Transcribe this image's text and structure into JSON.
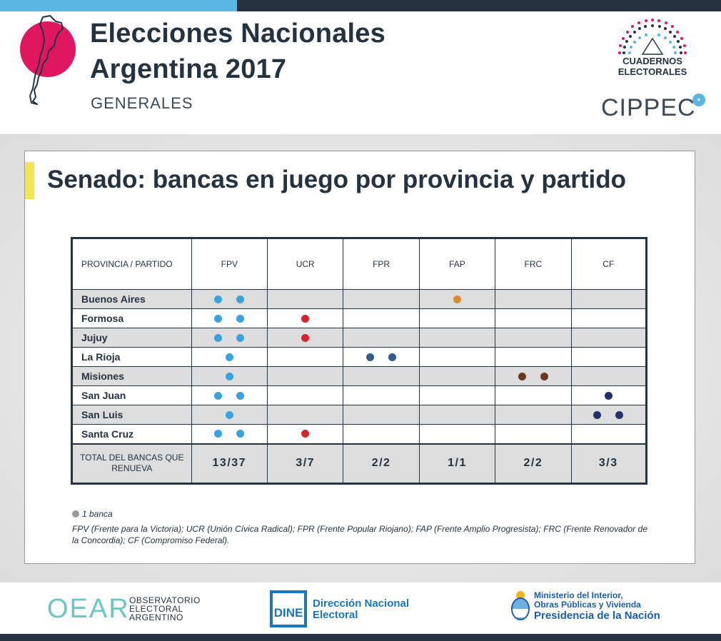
{
  "header": {
    "title_line1": "Elecciones Nacionales",
    "title_line2": "Argentina 2017",
    "subtitle": "GENERALES",
    "logo_cuadernos": "CUADERNOS ELECTORALES",
    "logo_cippec": "CIPPEC"
  },
  "card": {
    "title": "Senado: bancas en juego por provincia y partido"
  },
  "table": {
    "header_province": "PROVINCIA / PARTIDO",
    "parties": [
      "FPV",
      "UCR",
      "FPR",
      "FAP",
      "FRC",
      "CF"
    ],
    "party_colors": {
      "FPV": "#3aa3de",
      "UCR": "#d6242a",
      "FPR": "#345b8c",
      "FAP": "#e08a2c",
      "FRC": "#6b3a22",
      "CF": "#252f6a"
    },
    "rows": [
      {
        "province": "Buenos Aires",
        "seats": [
          2,
          0,
          0,
          1,
          0,
          0
        ]
      },
      {
        "province": "Formosa",
        "seats": [
          2,
          1,
          0,
          0,
          0,
          0
        ]
      },
      {
        "province": "Jujuy",
        "seats": [
          2,
          1,
          0,
          0,
          0,
          0
        ]
      },
      {
        "province": "La Rioja",
        "seats": [
          1,
          0,
          2,
          0,
          0,
          0
        ]
      },
      {
        "province": "Misiones",
        "seats": [
          1,
          0,
          0,
          0,
          2,
          0
        ]
      },
      {
        "province": "San Juan",
        "seats": [
          2,
          0,
          0,
          0,
          0,
          1
        ]
      },
      {
        "province": "San Luis",
        "seats": [
          1,
          0,
          0,
          0,
          0,
          2
        ]
      },
      {
        "province": "Santa Cruz",
        "seats": [
          2,
          1,
          0,
          0,
          0,
          0
        ]
      }
    ],
    "total_label": "TOTAL DEL BANCAS QUE RENUEVA",
    "totals": [
      "13/37",
      "3/7",
      "2/2",
      "1/1",
      "2/2",
      "3/3"
    ]
  },
  "legend": {
    "dot_label": "1 banca",
    "footnote": "FPV (Frente para la Victoria); UCR (Unión Cívica Radical); FPR (Frente Popular Riojano); FAP (Frente Amplio Progresista); FRC (Frente Renovador de la Concordia); CF (Compromiso Federal)."
  },
  "footer": {
    "oear": "OEAR",
    "oear_sub": [
      "OBSERVATORIO",
      "ELECTORAL",
      "ARGENTINO"
    ],
    "dine_box": "DINE",
    "dine_line1": "Dirección Nacional",
    "dine_line2": "Electoral",
    "ministry_line1": "Ministerio del Interior,",
    "ministry_line2": "Obras Públicas y Vivienda",
    "ministry_line3": "Presidencia de la Nación"
  }
}
